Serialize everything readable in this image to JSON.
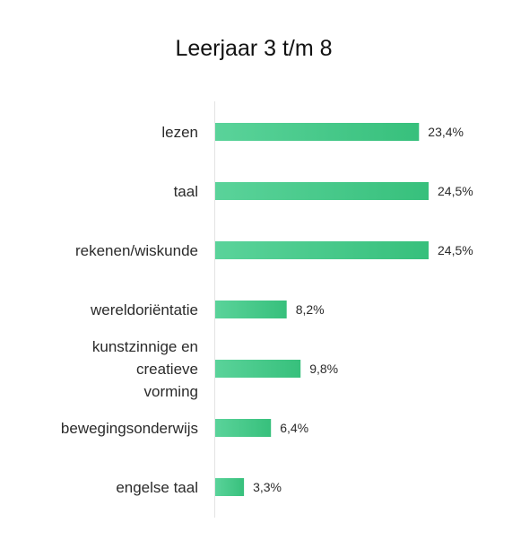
{
  "chart_data": {
    "type": "bar",
    "orientation": "horizontal",
    "title": "Leerjaar 3 t/m 8",
    "categories": [
      "lezen",
      "taal",
      "rekenen/wiskunde",
      "wereldoriëntatie",
      "kunstzinnige en creatieve vorming",
      "bewegingsonderwijs",
      "engelse taal"
    ],
    "category_lines": [
      [
        "lezen"
      ],
      [
        "taal"
      ],
      [
        "rekenen/wiskunde"
      ],
      [
        "wereldoriëntatie"
      ],
      [
        "kunstzinnige en",
        "creatieve",
        "vorming"
      ],
      [
        "bewegingsonderwijs"
      ],
      [
        "engelse taal"
      ]
    ],
    "values": [
      23.4,
      24.5,
      24.5,
      8.2,
      9.8,
      6.4,
      3.3
    ],
    "value_labels": [
      "23,4%",
      "24,5%",
      "24,5%",
      "8,2%",
      "9,8%",
      "6,4%",
      "3,3%"
    ],
    "xlim": [
      0,
      24.5
    ],
    "grid": false,
    "legend": "none",
    "colors": {
      "bar_start": "#5ad39a",
      "bar_end": "#37c07c",
      "axis": "#e3e3e3",
      "title": "#111111",
      "category_text": "#2b2b2b",
      "value_text": "#2b2b2b"
    }
  }
}
